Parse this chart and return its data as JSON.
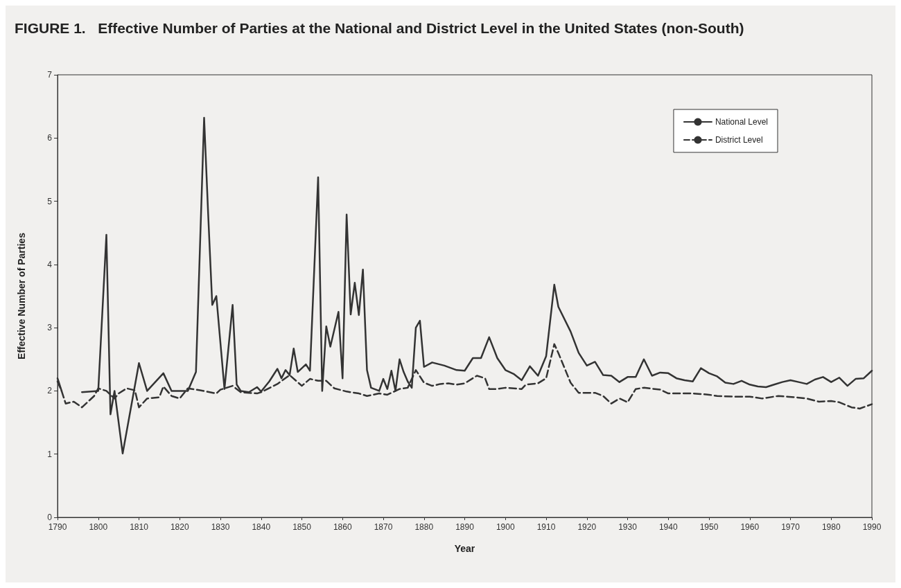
{
  "chart_data": {
    "type": "line",
    "title": "FIGURE 1.   Effective Number of Parties at the National and District Level in the United States (non-South)",
    "xlabel": "Year",
    "ylabel": "Effective Number of Parties",
    "xlim": [
      1790,
      1990
    ],
    "xticks": [
      1790,
      1800,
      1810,
      1820,
      1830,
      1840,
      1850,
      1860,
      1870,
      1880,
      1890,
      1900,
      1910,
      1920,
      1930,
      1940,
      1950,
      1960,
      1970,
      1980,
      1990
    ],
    "ylim": [
      0,
      7
    ],
    "yticks": [
      0,
      1,
      2,
      3,
      4,
      5,
      6,
      7
    ],
    "grid": false,
    "legend": "top right",
    "marker": "none",
    "series": [
      {
        "name": "National Level",
        "color": "#333333",
        "line_style": "solid",
        "x": [
          1790,
          1791,
          1792,
          1796,
          1800,
          1802,
          1803,
          1804,
          1806,
          1810,
          1812,
          1816,
          1818,
          1822,
          1824,
          1826,
          1827,
          1828,
          1829,
          1831,
          1833,
          1834,
          1835,
          1837,
          1839,
          1840,
          1842,
          1844,
          1845,
          1846,
          1847,
          1848,
          1849,
          1851,
          1852,
          1854,
          1855,
          1856,
          1857,
          1859,
          1860,
          1861,
          1862,
          1863,
          1864,
          1865,
          1866,
          1867,
          1869,
          1870,
          1871,
          1872,
          1873,
          1874,
          1875,
          1876,
          1877,
          1878,
          1879,
          1880,
          1882,
          1885,
          1888,
          1890,
          1892,
          1894,
          1896,
          1898,
          1900,
          1902,
          1904,
          1906,
          1908,
          1910,
          1912,
          1913,
          1916,
          1918,
          1920,
          1922,
          1924,
          1926,
          1928,
          1930,
          1932,
          1934,
          1936,
          1938,
          1940,
          1942,
          1944,
          1946,
          1948,
          1950,
          1952,
          1954,
          1956,
          1958,
          1960,
          1962,
          1964,
          1966,
          1968,
          1970,
          1972,
          1974,
          1976,
          1978,
          1980,
          1982,
          1984,
          1986,
          1988,
          1990
        ],
        "values": [
          2.2,
          2.0,
          null,
          1.98,
          2.0,
          4.47,
          1.63,
          2.0,
          1.01,
          2.44,
          2.0,
          2.28,
          2.0,
          2.0,
          2.3,
          6.32,
          4.79,
          3.36,
          3.5,
          2.03,
          3.36,
          2.1,
          2.0,
          1.98,
          2.06,
          1.99,
          2.15,
          2.35,
          2.2,
          2.33,
          2.25,
          2.67,
          2.3,
          2.42,
          2.32,
          5.38,
          2.0,
          3.02,
          2.7,
          3.25,
          2.2,
          4.79,
          3.21,
          3.71,
          3.2,
          3.92,
          2.33,
          2.05,
          2.0,
          2.19,
          2.03,
          2.32,
          2.0,
          2.5,
          2.3,
          2.15,
          2.05,
          3.0,
          3.11,
          2.38,
          2.45,
          2.4,
          2.33,
          2.32,
          2.52,
          2.52,
          2.85,
          2.52,
          2.33,
          2.27,
          2.17,
          2.39,
          2.24,
          2.55,
          3.68,
          3.33,
          2.94,
          2.6,
          2.4,
          2.46,
          2.25,
          2.24,
          2.14,
          2.22,
          2.22,
          2.5,
          2.24,
          2.29,
          2.28,
          2.2,
          2.17,
          2.15,
          2.36,
          2.28,
          2.23,
          2.13,
          2.11,
          2.16,
          2.1,
          2.07,
          2.06,
          2.1,
          2.14,
          2.17,
          2.14,
          2.11,
          2.18,
          2.22,
          2.14,
          2.21,
          2.08,
          2.19,
          2.2,
          2.32
        ]
      },
      {
        "name": "District Level",
        "color": "#333333",
        "line_style": "dashed",
        "x": [
          1790,
          1791,
          1792,
          1794,
          1796,
          1799,
          1800,
          1802,
          1804,
          1805,
          1807,
          1809,
          1810,
          1812,
          1815,
          1816,
          1818,
          1820,
          1822,
          1825,
          1829,
          1830,
          1833,
          1835,
          1839,
          1840,
          1844,
          1847,
          1850,
          1852,
          1854,
          1856,
          1858,
          1861,
          1864,
          1866,
          1869,
          1871,
          1874,
          1876,
          1878,
          1880,
          1882,
          1884,
          1886,
          1888,
          1890,
          1893,
          1895,
          1896,
          1898,
          1900,
          1904,
          1905,
          1908,
          1910,
          1912,
          1913,
          1916,
          1918,
          1922,
          1924,
          1926,
          1928,
          1930,
          1932,
          1934,
          1938,
          1940,
          1944,
          1946,
          1950,
          1952,
          1956,
          1960,
          1963,
          1967,
          1971,
          1974,
          1977,
          1980,
          1982,
          1985,
          1987,
          1990
        ],
        "values": [
          2.15,
          2.0,
          1.8,
          1.83,
          1.74,
          1.92,
          2.04,
          2.0,
          1.88,
          1.96,
          2.04,
          2.01,
          1.74,
          1.88,
          1.9,
          2.07,
          1.92,
          1.88,
          2.04,
          2.01,
          1.96,
          2.02,
          2.08,
          1.98,
          1.96,
          1.98,
          2.11,
          2.25,
          2.08,
          2.19,
          2.16,
          2.16,
          2.04,
          1.99,
          1.96,
          1.92,
          1.96,
          1.94,
          2.03,
          2.05,
          2.33,
          2.13,
          2.08,
          2.11,
          2.12,
          2.1,
          2.12,
          2.24,
          2.2,
          2.03,
          2.03,
          2.05,
          2.03,
          2.1,
          2.12,
          2.2,
          2.74,
          2.6,
          2.13,
          1.97,
          1.97,
          1.92,
          1.8,
          1.88,
          1.82,
          2.03,
          2.05,
          2.02,
          1.96,
          1.96,
          1.96,
          1.94,
          1.92,
          1.91,
          1.91,
          1.88,
          1.92,
          1.9,
          1.88,
          1.83,
          1.84,
          1.82,
          1.74,
          1.72,
          1.79
        ]
      }
    ]
  }
}
